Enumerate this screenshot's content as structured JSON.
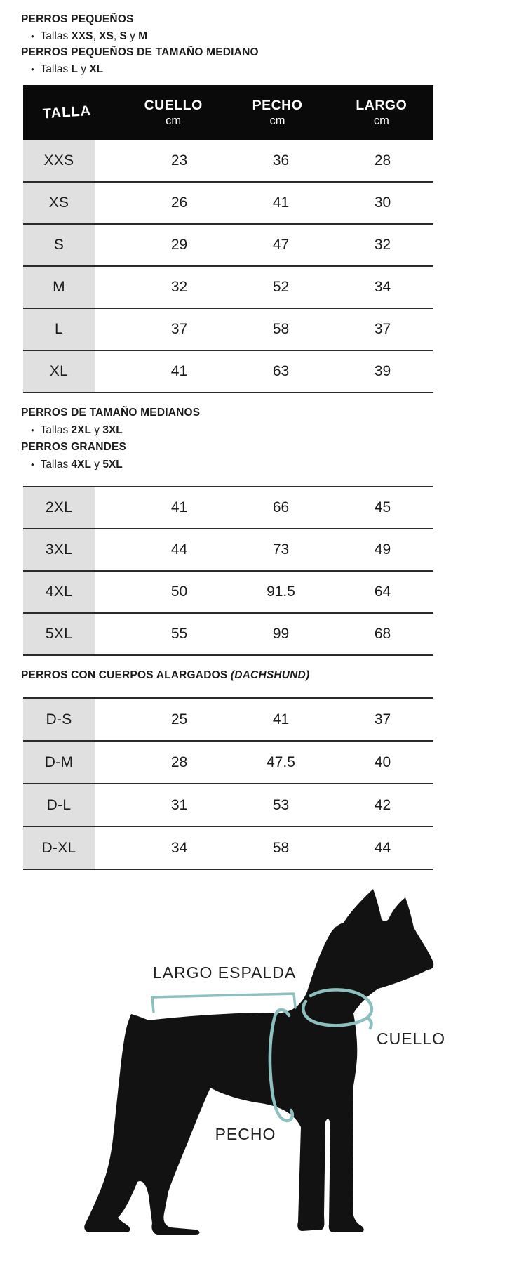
{
  "colors": {
    "accent": "#8cc0bf",
    "header_bg": "#0a0a0a",
    "label_cell_bg": "#e0e0e0",
    "line": "#2b2b2b",
    "text": "#1b1b1b"
  },
  "intro": {
    "items": [
      {
        "type": "heading",
        "text": "PERROS PEQUEÑOS"
      },
      {
        "type": "bullet",
        "segments": [
          {
            "text": "Tallas ",
            "bold": false
          },
          {
            "text": "XXS",
            "bold": true
          },
          {
            "text": ", ",
            "bold": false
          },
          {
            "text": "XS",
            "bold": true
          },
          {
            "text": ", ",
            "bold": false
          },
          {
            "text": "S",
            "bold": true
          },
          {
            "text": " y ",
            "bold": false
          },
          {
            "text": "M",
            "bold": true
          }
        ]
      },
      {
        "type": "heading",
        "text": "PERROS PEQUEÑOS DE TAMAÑO MEDIANO"
      },
      {
        "type": "bullet",
        "segments": [
          {
            "text": "Tallas ",
            "bold": false
          },
          {
            "text": "L",
            "bold": true
          },
          {
            "text": " y ",
            "bold": false
          },
          {
            "text": "XL",
            "bold": true
          }
        ]
      }
    ]
  },
  "mid": {
    "items": [
      {
        "type": "heading",
        "text": "PERROS DE TAMAÑO MEDIANOS"
      },
      {
        "type": "bullet",
        "segments": [
          {
            "text": "Tallas ",
            "bold": false
          },
          {
            "text": "2XL",
            "bold": true
          },
          {
            "text": " y ",
            "bold": false
          },
          {
            "text": "3XL",
            "bold": true
          }
        ]
      },
      {
        "type": "heading",
        "text": "PERROS GRANDES"
      },
      {
        "type": "bullet",
        "segments": [
          {
            "text": "Tallas ",
            "bold": false
          },
          {
            "text": "4XL",
            "bold": true
          },
          {
            "text": " y ",
            "bold": false
          },
          {
            "text": "5XL",
            "bold": true
          }
        ]
      }
    ]
  },
  "dachshund": {
    "items": [
      {
        "type": "heading",
        "text": "PERROS CON CUERPOS ALARGADOS ",
        "italic": "(DACHSHUND)"
      }
    ]
  },
  "size_chart": {
    "columns": {
      "size": "TALLA",
      "cols": [
        "CUELLO",
        "PECHO",
        "LARGO"
      ],
      "unit": "cm"
    },
    "small_dogs_rows": [
      [
        "XXS",
        "23",
        "36",
        "28"
      ],
      [
        "XS",
        "26",
        "41",
        "30"
      ],
      [
        "S",
        "29",
        "47",
        "32"
      ],
      [
        "M",
        "32",
        "52",
        "34"
      ],
      [
        "L",
        "37",
        "58",
        "37"
      ],
      [
        "XL",
        "41",
        "63",
        "39"
      ]
    ],
    "medium_large_rows": [
      [
        "2XL",
        "41",
        "66",
        "45"
      ],
      [
        "3XL",
        "44",
        "73",
        "49"
      ],
      [
        "4XL",
        "50",
        "91.5",
        "64"
      ],
      [
        "5XL",
        "55",
        "99",
        "68"
      ]
    ],
    "dachshund_rows": [
      [
        "D-S",
        "25",
        "41",
        "37"
      ],
      [
        "D-M",
        "28",
        "47.5",
        "40"
      ],
      [
        "D-L",
        "31",
        "53",
        "42"
      ],
      [
        "D-XL",
        "34",
        "58",
        "44"
      ]
    ]
  },
  "diagram": {
    "back_label": "LARGO ESPALDA",
    "neck_label": "CUELLO",
    "chest_label": "PECHO"
  }
}
